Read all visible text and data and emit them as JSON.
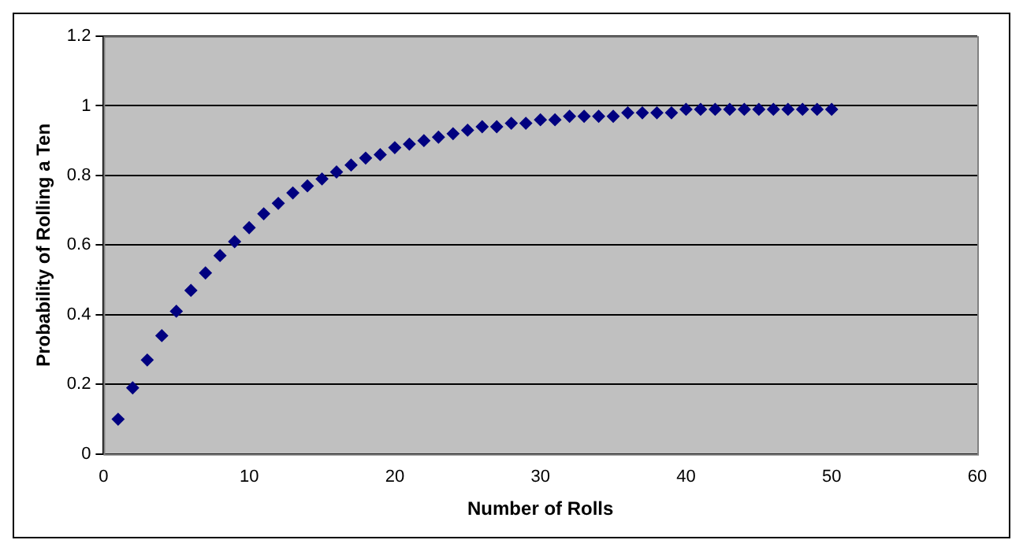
{
  "chart_data": {
    "type": "scatter",
    "xlabel": "Number of Rolls",
    "ylabel": "Probability of Rolling a Ten",
    "x": [
      1,
      2,
      3,
      4,
      5,
      6,
      7,
      8,
      9,
      10,
      11,
      12,
      13,
      14,
      15,
      16,
      17,
      18,
      19,
      20,
      21,
      22,
      23,
      24,
      25,
      26,
      27,
      28,
      29,
      30,
      31,
      32,
      33,
      34,
      35,
      36,
      37,
      38,
      39,
      40,
      41,
      42,
      43,
      44,
      45,
      46,
      47,
      48,
      49,
      50
    ],
    "series": [
      {
        "color": "#000080",
        "values": [
          0.1,
          0.19,
          0.27,
          0.34,
          0.41,
          0.47,
          0.52,
          0.57,
          0.61,
          0.65,
          0.69,
          0.72,
          0.75,
          0.77,
          0.79,
          0.81,
          0.83,
          0.85,
          0.86,
          0.88,
          0.89,
          0.9,
          0.91,
          0.92,
          0.93,
          0.94,
          0.94,
          0.95,
          0.95,
          0.96,
          0.96,
          0.97,
          0.97,
          0.97,
          0.97,
          0.98,
          0.98,
          0.98,
          0.98,
          0.99,
          0.99,
          0.99,
          0.99,
          0.99,
          0.99,
          0.99,
          0.99,
          0.99,
          0.99,
          0.99
        ]
      }
    ],
    "xlim": [
      0,
      60
    ],
    "xticks": [
      0,
      10,
      20,
      30,
      40,
      50,
      60
    ],
    "ylim": [
      0,
      1.2
    ],
    "yticks": [
      0,
      0.2,
      0.4,
      0.6,
      0.8,
      1,
      1.2
    ],
    "grid": "y",
    "legend": false,
    "marker": "diamond"
  }
}
